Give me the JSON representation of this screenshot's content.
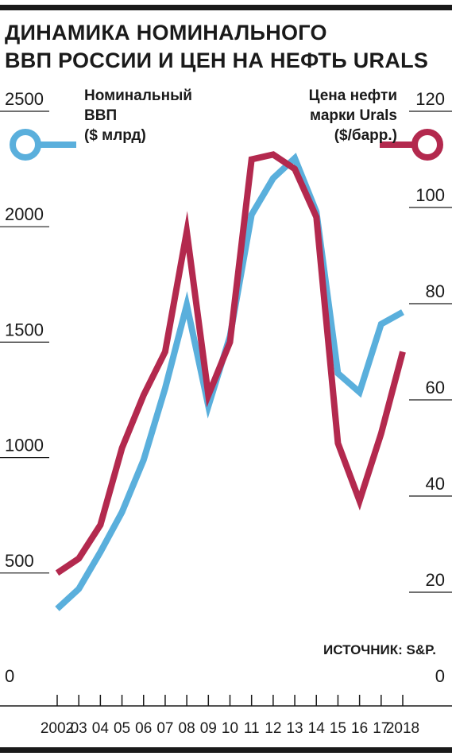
{
  "title": [
    "ДИНАМИКА НОМИНАЛЬНОГО",
    "ВВП РОССИИ И ЦЕН НА НЕФТЬ URALS"
  ],
  "source": "ИСТОЧНИК: S&P.",
  "colors": {
    "gdp": "#5aafdc",
    "oil": "#b3294e",
    "text": "#1a1a1a",
    "grid": "#1a1a1a"
  },
  "chart_data": {
    "type": "line",
    "x": [
      "2002",
      "03",
      "04",
      "05",
      "06",
      "07",
      "08",
      "09",
      "10",
      "11",
      "12",
      "13",
      "14",
      "15",
      "16",
      "17",
      "2018"
    ],
    "left_axis": {
      "ticks": [
        "2500",
        "2000",
        "1500",
        "1000",
        "500",
        "0"
      ],
      "values": [
        2500,
        2000,
        1500,
        1000,
        500,
        0
      ],
      "ylim": [
        0,
        2500
      ]
    },
    "right_axis": {
      "ticks": [
        "120",
        "100",
        "80",
        "60",
        "40",
        "20",
        "0"
      ],
      "values": [
        120,
        100,
        80,
        60,
        40,
        20,
        0
      ],
      "ylim": [
        0,
        120
      ]
    },
    "series": [
      {
        "name": "Номинальный ВВП ($ млрд)",
        "legend_lines": [
          "Номинальный",
          "ВВП",
          "($ млрд)"
        ],
        "axis": "left",
        "values": [
          345,
          431,
          591,
          764,
          990,
          1300,
          1661,
          1223,
          1525,
          2052,
          2210,
          2297,
          2064,
          1365,
          1283,
          1578,
          1630
        ]
      },
      {
        "name": "Цена нефти марки Urals ($/барр.)",
        "legend_lines": [
          "Цена нефти",
          "марки Urals",
          "($/барр.)"
        ],
        "axis": "right",
        "values": [
          24,
          27,
          34,
          50,
          61,
          70,
          95,
          61,
          72,
          110,
          111,
          108,
          98,
          51,
          39,
          53,
          70
        ]
      }
    ]
  }
}
